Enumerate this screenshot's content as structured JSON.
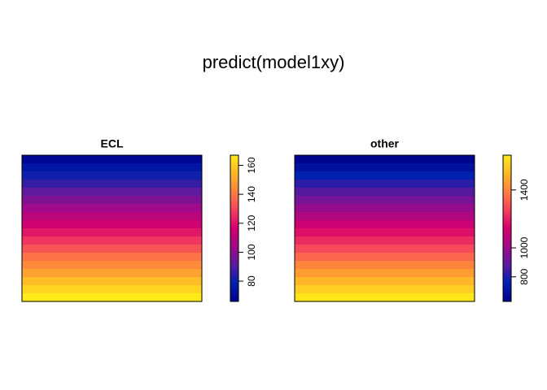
{
  "title": "predict(model1xy)",
  "chart_data": [
    {
      "type": "heatmap",
      "title": "ECL",
      "rows": [
        69,
        75,
        81,
        86,
        92,
        98,
        104,
        110,
        115,
        121,
        127,
        133,
        139,
        144,
        150,
        156,
        162,
        167
      ],
      "zlim": [
        66,
        167
      ],
      "zticks": [
        80,
        100,
        120,
        140,
        160
      ],
      "colors": [
        "#00008A",
        "#0020B0",
        "#5A1A9E",
        "#A00A8A",
        "#D6006C",
        "#F4405E",
        "#FF8040",
        "#FFB628",
        "#FFEA1A"
      ]
    },
    {
      "type": "heatmap",
      "title": "other",
      "rows": [
        640,
        698,
        756,
        815,
        873,
        931,
        989,
        1047,
        1106,
        1164,
        1222,
        1280,
        1338,
        1397,
        1455,
        1513,
        1571,
        1630
      ],
      "zlim": [
        630,
        1640
      ],
      "zticks": [
        800,
        1000,
        1400
      ],
      "colors": [
        "#00008A",
        "#0020B0",
        "#5A1A9E",
        "#A00A8A",
        "#D6006C",
        "#F4405E",
        "#FF8040",
        "#FFB628",
        "#FFEA1A"
      ]
    }
  ]
}
